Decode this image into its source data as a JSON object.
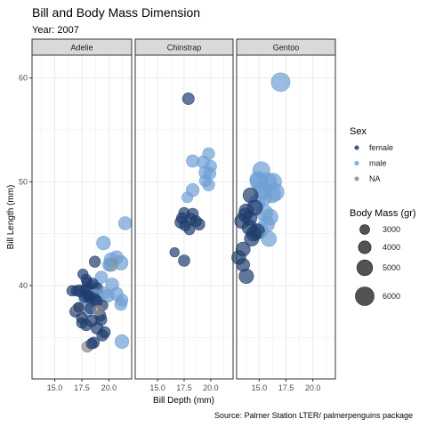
{
  "chart_data": {
    "type": "scatter",
    "title": "Bill and Body Mass Dimension",
    "subtitle": "Year: 2007",
    "caption": "Source: Palmer Station LTER/ palmerpenguins package",
    "xlabel": "Bill Depth (mm)",
    "ylabel": "Bill Length (mm)",
    "xlim": [
      12.9,
      22.1
    ],
    "ylim": [
      31.0,
      62.2
    ],
    "x_ticks": [
      15.0,
      17.5,
      20.0
    ],
    "x_tick_labels": [
      "15.0",
      "17.5",
      "20.0"
    ],
    "y_ticks": [
      40,
      50,
      60
    ],
    "y_tick_labels": [
      "40",
      "50",
      "60"
    ],
    "grid": true,
    "legend_position": "right",
    "facets": [
      "Adelie",
      "Chinstrap",
      "Gentoo"
    ],
    "colors": {
      "female": "#1f3d6e",
      "male": "#6fa0d4",
      "NA": "#8c8c8c",
      "strip_fill": "#d9d9d9",
      "panel_border": "#333333",
      "grid": "#ebebeb"
    },
    "legend": {
      "color_title": "Sex",
      "color_items": [
        {
          "key": "female",
          "label": "female"
        },
        {
          "key": "male",
          "label": "male"
        },
        {
          "key": "NA",
          "label": "NA"
        }
      ],
      "size_title": "Body Mass (gr)",
      "size_items": [
        {
          "value": 3000,
          "label": "3000"
        },
        {
          "value": 4000,
          "label": "4000"
        },
        {
          "value": 5000,
          "label": "5000"
        },
        {
          "value": 6000,
          "label": "6000"
        }
      ]
    },
    "points": [
      {
        "species": "Adelie",
        "sex": "female",
        "bill_depth": 17.8,
        "bill_length": 39.5,
        "body_mass": 3800
      },
      {
        "species": "Adelie",
        "sex": "female",
        "bill_depth": 18.0,
        "bill_length": 40.3,
        "body_mass": 3250
      },
      {
        "species": "Adelie",
        "sex": "female",
        "bill_depth": 19.3,
        "bill_length": 36.7,
        "body_mass": 3450
      },
      {
        "species": "Adelie",
        "sex": "female",
        "bill_depth": 17.8,
        "bill_length": 38.9,
        "body_mass": 3625
      },
      {
        "species": "Adelie",
        "sex": "female",
        "bill_depth": 17.6,
        "bill_length": 41.1,
        "body_mass": 3200
      },
      {
        "species": "Adelie",
        "sex": "female",
        "bill_depth": 17.0,
        "bill_length": 39.5,
        "body_mass": 3300
      },
      {
        "species": "Adelie",
        "sex": "female",
        "bill_depth": 18.4,
        "bill_length": 36.6,
        "body_mass": 3700
      },
      {
        "species": "Adelie",
        "sex": "female",
        "bill_depth": 18.7,
        "bill_length": 38.7,
        "body_mass": 3450
      },
      {
        "species": "Adelie",
        "sex": "female",
        "bill_depth": 18.9,
        "bill_length": 35.9,
        "body_mass": 3800
      },
      {
        "species": "Adelie",
        "sex": "female",
        "bill_depth": 17.9,
        "bill_length": 36.2,
        "body_mass": 3550
      },
      {
        "species": "Adelie",
        "sex": "female",
        "bill_depth": 17.3,
        "bill_length": 39.5,
        "body_mass": 3800
      },
      {
        "species": "Adelie",
        "sex": "female",
        "bill_depth": 18.3,
        "bill_length": 37.8,
        "body_mass": 3400
      },
      {
        "species": "Adelie",
        "sex": "female",
        "bill_depth": 18.6,
        "bill_length": 34.5,
        "body_mass": 3500
      },
      {
        "species": "Adelie",
        "sex": "female",
        "bill_depth": 18.1,
        "bill_length": 39.0,
        "body_mass": 3300
      },
      {
        "species": "Adelie",
        "sex": "female",
        "bill_depth": 17.2,
        "bill_length": 37.9,
        "body_mass": 3150
      },
      {
        "species": "Adelie",
        "sex": "female",
        "bill_depth": 17.5,
        "bill_length": 36.4,
        "body_mass": 3300
      },
      {
        "species": "Adelie",
        "sex": "female",
        "bill_depth": 18.7,
        "bill_length": 42.3,
        "body_mass": 3500
      },
      {
        "species": "Adelie",
        "sex": "female",
        "bill_depth": 18.9,
        "bill_length": 39.7,
        "body_mass": 3800
      },
      {
        "species": "Adelie",
        "sex": "female",
        "bill_depth": 19.6,
        "bill_length": 35.5,
        "body_mass": 3600
      },
      {
        "species": "Adelie",
        "sex": "female",
        "bill_depth": 19.4,
        "bill_length": 38.1,
        "body_mass": 3400
      },
      {
        "species": "Adelie",
        "sex": "female",
        "bill_depth": 18.4,
        "bill_length": 34.4,
        "body_mass": 3325
      },
      {
        "species": "Adelie",
        "sex": "female",
        "bill_depth": 16.9,
        "bill_length": 37.5,
        "body_mass": 3500
      },
      {
        "species": "Adelie",
        "sex": "female",
        "bill_depth": 18.2,
        "bill_length": 38.9,
        "body_mass": 3650
      },
      {
        "species": "Adelie",
        "sex": "female",
        "bill_depth": 17.9,
        "bill_length": 40.6,
        "body_mass": 3250
      },
      {
        "species": "Adelie",
        "sex": "female",
        "bill_depth": 16.6,
        "bill_length": 39.5,
        "body_mass": 3300
      },
      {
        "species": "Adelie",
        "sex": "female",
        "bill_depth": 19.2,
        "bill_length": 37.1,
        "body_mass": 3550
      },
      {
        "species": "Adelie",
        "sex": "female",
        "bill_depth": 18.9,
        "bill_length": 38.5,
        "body_mass": 3500
      },
      {
        "species": "Adelie",
        "sex": "female",
        "bill_depth": 18.5,
        "bill_length": 40.2,
        "body_mass": 3400
      },
      {
        "species": "Adelie",
        "sex": "female",
        "bill_depth": 17.5,
        "bill_length": 36.9,
        "body_mass": 3500
      },
      {
        "species": "Adelie",
        "sex": "female",
        "bill_depth": 19.4,
        "bill_length": 35.2,
        "body_mass": 3500
      },
      {
        "species": "Adelie",
        "sex": "female",
        "bill_depth": 18.0,
        "bill_length": 39.6,
        "body_mass": 3900
      },
      {
        "species": "Adelie",
        "sex": "male",
        "bill_depth": 18.7,
        "bill_length": 39.1,
        "body_mass": 3750
      },
      {
        "species": "Adelie",
        "sex": "male",
        "bill_depth": 19.6,
        "bill_length": 39.3,
        "body_mass": 3650
      },
      {
        "species": "Adelie",
        "sex": "male",
        "bill_depth": 21.2,
        "bill_length": 34.6,
        "body_mass": 4400
      },
      {
        "species": "Adelie",
        "sex": "male",
        "bill_depth": 21.1,
        "bill_length": 38.2,
        "body_mass": 3900
      },
      {
        "species": "Adelie",
        "sex": "male",
        "bill_depth": 20.2,
        "bill_length": 42.5,
        "body_mass": 4400
      },
      {
        "species": "Adelie",
        "sex": "male",
        "bill_depth": 20.0,
        "bill_length": 42.0,
        "body_mass": 4000
      },
      {
        "species": "Adelie",
        "sex": "male",
        "bill_depth": 21.5,
        "bill_length": 46.0,
        "body_mass": 4200
      },
      {
        "species": "Adelie",
        "sex": "male",
        "bill_depth": 19.5,
        "bill_length": 44.1,
        "body_mass": 4400
      },
      {
        "species": "Adelie",
        "sex": "male",
        "bill_depth": 20.7,
        "bill_length": 42.7,
        "body_mass": 4300
      },
      {
        "species": "Adelie",
        "sex": "male",
        "bill_depth": 21.1,
        "bill_length": 42.2,
        "body_mass": 4600
      },
      {
        "species": "Adelie",
        "sex": "male",
        "bill_depth": 20.7,
        "bill_length": 39.2,
        "body_mass": 4200
      },
      {
        "species": "Adelie",
        "sex": "male",
        "bill_depth": 21.2,
        "bill_length": 38.6,
        "body_mass": 3800
      },
      {
        "species": "Adelie",
        "sex": "male",
        "bill_depth": 18.6,
        "bill_length": 39.8,
        "body_mass": 4450
      },
      {
        "species": "Adelie",
        "sex": "male",
        "bill_depth": 19.3,
        "bill_length": 40.8,
        "body_mass": 3900
      },
      {
        "species": "Adelie",
        "sex": "male",
        "bill_depth": 17.8,
        "bill_length": 38.8,
        "body_mass": 3950
      },
      {
        "species": "Adelie",
        "sex": "male",
        "bill_depth": 19.9,
        "bill_length": 39.0,
        "body_mass": 4050
      },
      {
        "species": "Adelie",
        "sex": "male",
        "bill_depth": 20.3,
        "bill_length": 40.1,
        "body_mass": 4100
      },
      {
        "species": "Adelie",
        "sex": "male",
        "bill_depth": 18.1,
        "bill_length": 37.6,
        "body_mass": 3950
      },
      {
        "species": "Adelie",
        "sex": "male",
        "bill_depth": 18.3,
        "bill_length": 38.6,
        "body_mass": 3800
      },
      {
        "species": "Adelie",
        "sex": "NA",
        "bill_depth": 18.0,
        "bill_length": 34.1,
        "body_mass": 3475
      },
      {
        "species": "Adelie",
        "sex": "NA",
        "bill_depth": 20.2,
        "bill_length": 42.0,
        "body_mass": 4250
      },
      {
        "species": "Adelie",
        "sex": "NA",
        "bill_depth": 17.1,
        "bill_length": 37.8,
        "body_mass": 3300
      },
      {
        "species": "Adelie",
        "sex": "NA",
        "bill_depth": 17.3,
        "bill_length": 37.8,
        "body_mass": 3700
      },
      {
        "species": "Adelie",
        "sex": "NA",
        "bill_depth": 19.0,
        "bill_length": 37.6,
        "body_mass": 3200
      },
      {
        "species": "Chinstrap",
        "sex": "female",
        "bill_depth": 17.9,
        "bill_length": 58.0,
        "body_mass": 3700
      },
      {
        "species": "Chinstrap",
        "sex": "female",
        "bill_depth": 17.3,
        "bill_length": 46.5,
        "body_mass": 3500
      },
      {
        "species": "Chinstrap",
        "sex": "female",
        "bill_depth": 17.2,
        "bill_length": 46.1,
        "body_mass": 3800
      },
      {
        "species": "Chinstrap",
        "sex": "female",
        "bill_depth": 16.6,
        "bill_length": 43.2,
        "body_mass": 2900
      },
      {
        "species": "Chinstrap",
        "sex": "female",
        "bill_depth": 17.5,
        "bill_length": 42.4,
        "body_mass": 3600
      },
      {
        "species": "Chinstrap",
        "sex": "female",
        "bill_depth": 18.1,
        "bill_length": 46.4,
        "body_mass": 3700
      },
      {
        "species": "Chinstrap",
        "sex": "female",
        "bill_depth": 17.6,
        "bill_length": 45.8,
        "body_mass": 3500
      },
      {
        "species": "Chinstrap",
        "sex": "female",
        "bill_depth": 18.6,
        "bill_length": 46.2,
        "body_mass": 3550
      },
      {
        "species": "Chinstrap",
        "sex": "female",
        "bill_depth": 18.3,
        "bill_length": 46.9,
        "body_mass": 3600
      },
      {
        "species": "Chinstrap",
        "sex": "female",
        "bill_depth": 18.9,
        "bill_length": 45.9,
        "body_mass": 3650
      },
      {
        "species": "Chinstrap",
        "sex": "female",
        "bill_depth": 17.5,
        "bill_length": 47.0,
        "body_mass": 3400
      },
      {
        "species": "Chinstrap",
        "sex": "female",
        "bill_depth": 18.0,
        "bill_length": 45.4,
        "body_mass": 3300
      },
      {
        "species": "Chinstrap",
        "sex": "male",
        "bill_depth": 18.3,
        "bill_length": 52.0,
        "body_mass": 3950
      },
      {
        "species": "Chinstrap",
        "sex": "male",
        "bill_depth": 19.8,
        "bill_length": 52.7,
        "body_mass": 3800
      },
      {
        "species": "Chinstrap",
        "sex": "male",
        "bill_depth": 19.3,
        "bill_length": 51.9,
        "body_mass": 3950
      },
      {
        "species": "Chinstrap",
        "sex": "male",
        "bill_depth": 19.9,
        "bill_length": 50.8,
        "body_mass": 3900
      },
      {
        "species": "Chinstrap",
        "sex": "male",
        "bill_depth": 19.5,
        "bill_length": 50.9,
        "body_mass": 4100
      },
      {
        "species": "Chinstrap",
        "sex": "male",
        "bill_depth": 19.5,
        "bill_length": 50.1,
        "body_mass": 3750
      },
      {
        "species": "Chinstrap",
        "sex": "male",
        "bill_depth": 19.8,
        "bill_length": 49.7,
        "body_mass": 3800
      },
      {
        "species": "Chinstrap",
        "sex": "male",
        "bill_depth": 18.3,
        "bill_length": 49.2,
        "body_mass": 4100
      },
      {
        "species": "Chinstrap",
        "sex": "male",
        "bill_depth": 17.8,
        "bill_length": 48.5,
        "body_mass": 3400
      },
      {
        "species": "Chinstrap",
        "sex": "male",
        "bill_depth": 20.0,
        "bill_length": 51.5,
        "body_mass": 3700
      },
      {
        "species": "Gentoo",
        "sex": "female",
        "bill_depth": 13.4,
        "bill_length": 46.2,
        "body_mass": 4700
      },
      {
        "species": "Gentoo",
        "sex": "female",
        "bill_depth": 14.1,
        "bill_length": 45.6,
        "body_mass": 4750
      },
      {
        "species": "Gentoo",
        "sex": "female",
        "bill_depth": 13.5,
        "bill_length": 43.5,
        "body_mass": 4500
      },
      {
        "species": "Gentoo",
        "sex": "female",
        "bill_depth": 13.1,
        "bill_length": 42.7,
        "body_mass": 4450
      },
      {
        "species": "Gentoo",
        "sex": "female",
        "bill_depth": 14.5,
        "bill_length": 45.0,
        "body_mass": 4700
      },
      {
        "species": "Gentoo",
        "sex": "female",
        "bill_depth": 14.2,
        "bill_length": 48.7,
        "body_mass": 4800
      },
      {
        "species": "Gentoo",
        "sex": "female",
        "bill_depth": 14.6,
        "bill_length": 47.5,
        "body_mass": 4900
      },
      {
        "species": "Gentoo",
        "sex": "female",
        "bill_depth": 14.1,
        "bill_length": 46.5,
        "body_mass": 4650
      },
      {
        "species": "Gentoo",
        "sex": "female",
        "bill_depth": 13.8,
        "bill_length": 40.9,
        "body_mass": 4650
      },
      {
        "species": "Gentoo",
        "sex": "female",
        "bill_depth": 13.5,
        "bill_length": 42.0,
        "body_mass": 4150
      },
      {
        "species": "Gentoo",
        "sex": "female",
        "bill_depth": 14.8,
        "bill_length": 45.2,
        "body_mass": 4900
      },
      {
        "species": "Gentoo",
        "sex": "female",
        "bill_depth": 14.3,
        "bill_length": 44.5,
        "body_mass": 4600
      },
      {
        "species": "Gentoo",
        "sex": "female",
        "bill_depth": 13.8,
        "bill_length": 47.2,
        "body_mass": 4500
      },
      {
        "species": "Gentoo",
        "sex": "female",
        "bill_depth": 13.7,
        "bill_length": 46.8,
        "body_mass": 4450
      },
      {
        "species": "Gentoo",
        "sex": "male",
        "bill_depth": 17.0,
        "bill_length": 59.6,
        "body_mass": 6050
      },
      {
        "species": "Gentoo",
        "sex": "male",
        "bill_depth": 15.0,
        "bill_length": 50.0,
        "body_mass": 5700
      },
      {
        "species": "Gentoo",
        "sex": "male",
        "bill_depth": 15.8,
        "bill_length": 50.0,
        "body_mass": 5700
      },
      {
        "species": "Gentoo",
        "sex": "male",
        "bill_depth": 15.3,
        "bill_length": 49.2,
        "body_mass": 5500
      },
      {
        "species": "Gentoo",
        "sex": "male",
        "bill_depth": 16.3,
        "bill_length": 50.0,
        "body_mass": 5400
      },
      {
        "species": "Gentoo",
        "sex": "male",
        "bill_depth": 14.8,
        "bill_length": 48.0,
        "body_mass": 5200
      },
      {
        "species": "Gentoo",
        "sex": "male",
        "bill_depth": 15.5,
        "bill_length": 47.0,
        "body_mass": 5350
      },
      {
        "species": "Gentoo",
        "sex": "male",
        "bill_depth": 16.0,
        "bill_length": 46.6,
        "body_mass": 5150
      },
      {
        "species": "Gentoo",
        "sex": "male",
        "bill_depth": 15.1,
        "bill_length": 45.3,
        "body_mass": 5050
      },
      {
        "species": "Gentoo",
        "sex": "male",
        "bill_depth": 15.7,
        "bill_length": 45.9,
        "body_mass": 5000
      },
      {
        "species": "Gentoo",
        "sex": "male",
        "bill_depth": 16.5,
        "bill_length": 49.0,
        "body_mass": 5600
      },
      {
        "species": "Gentoo",
        "sex": "male",
        "bill_depth": 14.9,
        "bill_length": 50.2,
        "body_mass": 5350
      },
      {
        "species": "Gentoo",
        "sex": "male",
        "bill_depth": 15.4,
        "bill_length": 48.5,
        "body_mass": 5250
      },
      {
        "species": "Gentoo",
        "sex": "male",
        "bill_depth": 16.2,
        "bill_length": 48.8,
        "body_mass": 5450
      },
      {
        "species": "Gentoo",
        "sex": "male",
        "bill_depth": 15.9,
        "bill_length": 44.5,
        "body_mass": 4875
      },
      {
        "species": "Gentoo",
        "sex": "male",
        "bill_depth": 15.2,
        "bill_length": 51.1,
        "body_mass": 5550
      }
    ]
  }
}
